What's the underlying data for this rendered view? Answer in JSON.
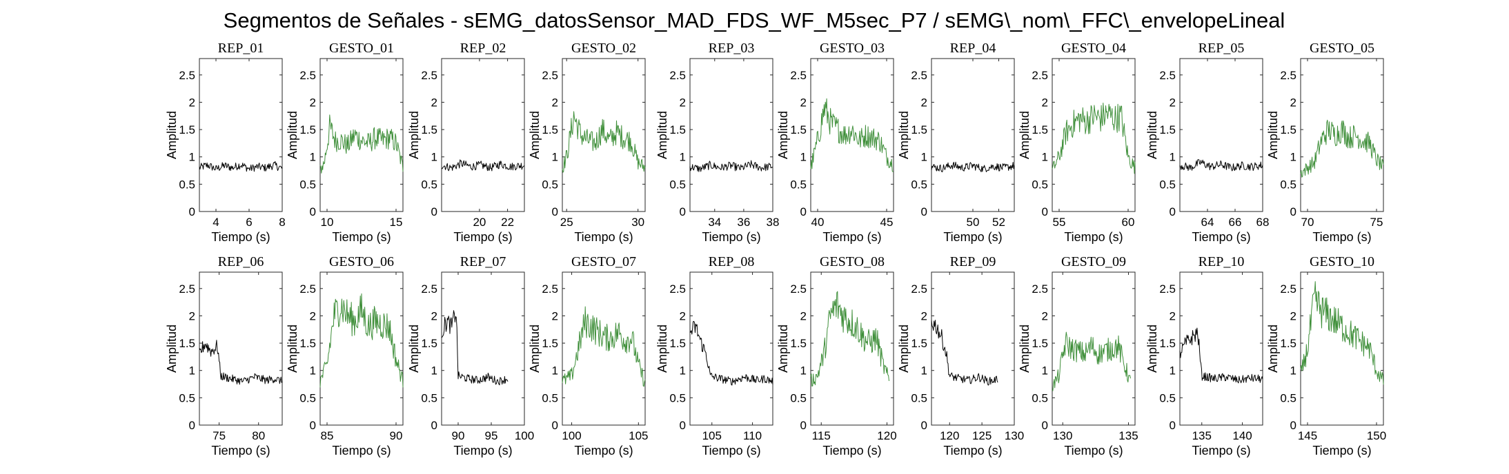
{
  "figure": {
    "title": "Segmentos de Señales - sEMG_datosSensor_MAD_FDS_WF_M5sec_P7 / sEMG\\_nom\\_FFC\\_envelopeLineal"
  },
  "colors": {
    "rep": "#000000",
    "gesto": "#3f8f3a",
    "axes": "#262626"
  },
  "chart_data": [
    {
      "type": "line",
      "title": "REP_01",
      "xlabel": "Tiempo (s)",
      "ylabel": "Amplitud",
      "xlim": [
        3,
        8
      ],
      "xticks": [
        4,
        6,
        8
      ],
      "ylim": [
        0,
        2.8
      ],
      "yticks": [
        0,
        0.5,
        1,
        1.5,
        2,
        2.5
      ],
      "series": [
        {
          "x": [
            3.0,
            3.5,
            4.0,
            4.5,
            5.0,
            5.5,
            6.0,
            6.5,
            7.0,
            7.5,
            8.0
          ],
          "y": [
            0.8,
            0.85,
            0.78,
            0.84,
            0.8,
            0.86,
            0.78,
            0.82,
            0.8,
            0.85,
            0.79
          ],
          "color": "rep"
        }
      ]
    },
    {
      "type": "line",
      "title": "GESTO_01",
      "xlabel": "Tiempo (s)",
      "ylabel": "Amplitud",
      "xlim": [
        9.5,
        15.5
      ],
      "xticks": [
        10,
        15
      ],
      "ylim": [
        0,
        2.8
      ],
      "yticks": [
        0,
        0.5,
        1,
        1.5,
        2,
        2.5
      ],
      "series": [
        {
          "x": [
            9.5,
            9.8,
            10.2,
            10.6,
            11.0,
            11.5,
            12.0,
            12.5,
            13.0,
            13.5,
            14.0,
            14.5,
            15.0,
            15.5
          ],
          "y": [
            0.75,
            0.9,
            1.55,
            1.3,
            1.3,
            1.2,
            1.4,
            1.3,
            1.25,
            1.35,
            1.3,
            1.35,
            1.25,
            0.8
          ],
          "color": "gesto"
        }
      ]
    },
    {
      "type": "line",
      "title": "REP_02",
      "xlabel": "Tiempo (s)",
      "ylabel": "Amplitud",
      "xlim": [
        17.3,
        23.2
      ],
      "xticks": [
        20,
        22
      ],
      "ylim": [
        0,
        2.8
      ],
      "yticks": [
        0,
        0.5,
        1,
        1.5,
        2,
        2.5
      ],
      "series": [
        {
          "x": [
            17.3,
            18.0,
            18.7,
            19.4,
            20.1,
            20.8,
            21.5,
            22.2,
            23.2
          ],
          "y": [
            0.85,
            0.8,
            0.88,
            0.82,
            0.85,
            0.8,
            0.87,
            0.82,
            0.85
          ],
          "color": "rep"
        }
      ]
    },
    {
      "type": "line",
      "title": "GESTO_02",
      "xlabel": "Tiempo (s)",
      "ylabel": "Amplitud",
      "xlim": [
        24.7,
        30.5
      ],
      "xticks": [
        25,
        30
      ],
      "ylim": [
        0,
        2.8
      ],
      "yticks": [
        0,
        0.5,
        1,
        1.5,
        2,
        2.5
      ],
      "series": [
        {
          "x": [
            24.7,
            25.0,
            25.5,
            26.0,
            26.5,
            27.0,
            27.5,
            28.0,
            28.5,
            29.0,
            29.5,
            30.0,
            30.5
          ],
          "y": [
            0.8,
            1.0,
            1.75,
            1.4,
            1.3,
            1.25,
            1.5,
            1.3,
            1.45,
            1.35,
            1.3,
            0.9,
            0.8
          ],
          "color": "gesto"
        }
      ]
    },
    {
      "type": "line",
      "title": "REP_03",
      "xlabel": "Tiempo (s)",
      "ylabel": "Amplitud",
      "xlim": [
        32.3,
        38
      ],
      "xticks": [
        34,
        36,
        38
      ],
      "ylim": [
        0,
        2.8
      ],
      "yticks": [
        0,
        0.5,
        1,
        1.5,
        2,
        2.5
      ],
      "series": [
        {
          "x": [
            32.3,
            33.0,
            33.7,
            34.4,
            35.1,
            35.8,
            36.5,
            37.2,
            38.0
          ],
          "y": [
            0.82,
            0.78,
            0.85,
            0.8,
            0.84,
            0.79,
            0.86,
            0.8,
            0.83
          ],
          "color": "rep"
        }
      ]
    },
    {
      "type": "line",
      "title": "GESTO_03",
      "xlabel": "Tiempo (s)",
      "ylabel": "Amplitud",
      "xlim": [
        39.5,
        45.5
      ],
      "xticks": [
        40,
        45
      ],
      "ylim": [
        0,
        2.8
      ],
      "yticks": [
        0,
        0.5,
        1,
        1.5,
        2,
        2.5
      ],
      "series": [
        {
          "x": [
            39.5,
            40.0,
            40.5,
            41.0,
            41.5,
            42.0,
            42.5,
            43.0,
            43.5,
            44.0,
            44.5,
            45.0,
            45.5
          ],
          "y": [
            0.8,
            1.3,
            1.9,
            1.6,
            1.5,
            1.4,
            1.5,
            1.3,
            1.4,
            1.35,
            1.3,
            1.0,
            0.85
          ],
          "color": "gesto"
        }
      ]
    },
    {
      "type": "line",
      "title": "REP_04",
      "xlabel": "Tiempo (s)",
      "ylabel": "Amplitud",
      "xlim": [
        46.8,
        53.2
      ],
      "xticks": [
        50,
        52
      ],
      "ylim": [
        0,
        2.8
      ],
      "yticks": [
        0,
        0.5,
        1,
        1.5,
        2,
        2.5
      ],
      "series": [
        {
          "x": [
            46.8,
            47.6,
            48.4,
            49.2,
            50.0,
            50.8,
            51.6,
            52.4,
            53.2
          ],
          "y": [
            0.82,
            0.79,
            0.85,
            0.8,
            0.84,
            0.78,
            0.83,
            0.8,
            0.84
          ],
          "color": "rep"
        }
      ]
    },
    {
      "type": "line",
      "title": "GESTO_04",
      "xlabel": "Tiempo (s)",
      "ylabel": "Amplitud",
      "xlim": [
        54.5,
        60.5
      ],
      "xticks": [
        55,
        60
      ],
      "ylim": [
        0,
        2.8
      ],
      "yticks": [
        0,
        0.5,
        1,
        1.5,
        2,
        2.5
      ],
      "series": [
        {
          "x": [
            54.5,
            55.0,
            55.5,
            56.0,
            56.5,
            57.0,
            57.5,
            58.0,
            58.5,
            59.0,
            59.5,
            60.0,
            60.5
          ],
          "y": [
            0.75,
            1.0,
            1.45,
            1.6,
            1.7,
            1.65,
            1.75,
            1.7,
            1.8,
            1.7,
            1.75,
            1.0,
            0.8
          ],
          "color": "gesto"
        }
      ]
    },
    {
      "type": "line",
      "title": "REP_05",
      "xlabel": "Tiempo (s)",
      "ylabel": "Amplitud",
      "xlim": [
        62,
        68
      ],
      "xticks": [
        64,
        66,
        68
      ],
      "ylim": [
        0,
        2.8
      ],
      "yticks": [
        0,
        0.5,
        1,
        1.5,
        2,
        2.5
      ],
      "series": [
        {
          "x": [
            62.0,
            62.75,
            63.5,
            64.25,
            65.0,
            65.75,
            66.5,
            67.25,
            68.0
          ],
          "y": [
            0.85,
            0.8,
            0.9,
            0.82,
            0.86,
            0.8,
            0.84,
            0.82,
            0.85
          ],
          "color": "rep"
        }
      ]
    },
    {
      "type": "line",
      "title": "GESTO_05",
      "xlabel": "Tiempo (s)",
      "ylabel": "Amplitud",
      "xlim": [
        69.5,
        75.5
      ],
      "xticks": [
        70,
        75
      ],
      "ylim": [
        0,
        2.8
      ],
      "yticks": [
        0,
        0.5,
        1,
        1.5,
        2,
        2.5
      ],
      "series": [
        {
          "x": [
            69.5,
            70.0,
            70.5,
            71.0,
            71.5,
            72.0,
            72.5,
            73.0,
            73.5,
            74.0,
            74.5,
            75.0,
            75.5
          ],
          "y": [
            0.7,
            0.8,
            0.9,
            1.3,
            1.5,
            1.4,
            1.5,
            1.35,
            1.4,
            1.3,
            1.25,
            0.95,
            0.8
          ],
          "color": "gesto"
        }
      ]
    },
    {
      "type": "line",
      "title": "REP_06",
      "xlabel": "Tiempo (s)",
      "ylabel": "Amplitud",
      "xlim": [
        72.5,
        83
      ],
      "xticks": [
        75,
        80
      ],
      "ylim": [
        0,
        2.8
      ],
      "yticks": [
        0,
        0.5,
        1,
        1.5,
        2,
        2.5
      ],
      "series": [
        {
          "x": [
            72.5,
            73.2,
            74.0,
            74.8,
            75.2,
            76.5,
            78.0,
            79.5,
            81.0,
            82.0,
            83.0
          ],
          "y": [
            1.3,
            1.5,
            1.35,
            1.45,
            0.9,
            0.85,
            0.8,
            0.88,
            0.82,
            0.85,
            0.8
          ],
          "color": "rep"
        }
      ]
    },
    {
      "type": "line",
      "title": "GESTO_06",
      "xlabel": "Tiempo (s)",
      "ylabel": "Amplitud",
      "xlim": [
        84.5,
        90.5
      ],
      "xticks": [
        85,
        90
      ],
      "ylim": [
        0,
        2.8
      ],
      "yticks": [
        0,
        0.5,
        1,
        1.5,
        2,
        2.5
      ],
      "series": [
        {
          "x": [
            84.5,
            85.0,
            85.5,
            86.0,
            86.5,
            87.0,
            87.5,
            88.0,
            88.5,
            89.0,
            89.5,
            90.0,
            90.5
          ],
          "y": [
            0.8,
            1.1,
            2.0,
            2.2,
            2.0,
            1.9,
            2.1,
            1.8,
            1.9,
            1.85,
            1.8,
            1.2,
            0.8
          ],
          "color": "gesto"
        }
      ]
    },
    {
      "type": "line",
      "title": "REP_07",
      "xlabel": "Tiempo (s)",
      "ylabel": "Amplitud",
      "xlim": [
        87.5,
        100
      ],
      "xticks": [
        90,
        95,
        100
      ],
      "ylim": [
        0,
        2.8
      ],
      "yticks": [
        0,
        0.5,
        1,
        1.5,
        2,
        2.5
      ],
      "series": [
        {
          "x": [
            87.5,
            88.3,
            89.0,
            89.7,
            90.0,
            91.5,
            93.0,
            94.5,
            96.0,
            97.5
          ],
          "y": [
            1.7,
            1.9,
            1.8,
            2.1,
            0.9,
            0.85,
            0.82,
            0.88,
            0.8,
            0.85
          ],
          "color": "rep"
        }
      ]
    },
    {
      "type": "line",
      "title": "GESTO_07",
      "xlabel": "Tiempo (s)",
      "ylabel": "Amplitud",
      "xlim": [
        99.3,
        105.5
      ],
      "xticks": [
        100,
        105
      ],
      "ylim": [
        0,
        2.8
      ],
      "yticks": [
        0,
        0.5,
        1,
        1.5,
        2,
        2.5
      ],
      "series": [
        {
          "x": [
            99.3,
            100.0,
            100.5,
            101.0,
            101.5,
            102.0,
            102.5,
            103.0,
            103.5,
            104.0,
            104.5,
            105.0,
            105.5
          ],
          "y": [
            0.8,
            0.9,
            1.4,
            1.9,
            1.8,
            1.7,
            1.6,
            1.6,
            1.7,
            1.55,
            1.6,
            1.1,
            0.75
          ],
          "color": "gesto"
        }
      ]
    },
    {
      "type": "line",
      "title": "REP_08",
      "xlabel": "Tiempo (s)",
      "ylabel": "Amplitud",
      "xlim": [
        102.3,
        112.5
      ],
      "xticks": [
        105,
        110
      ],
      "ylim": [
        0,
        2.8
      ],
      "yticks": [
        0,
        0.5,
        1,
        1.5,
        2,
        2.5
      ],
      "series": [
        {
          "x": [
            102.3,
            103.0,
            103.7,
            104.3,
            104.8,
            106.0,
            107.5,
            109.0,
            110.5,
            111.5,
            112.5
          ],
          "y": [
            1.7,
            1.8,
            1.5,
            1.3,
            0.9,
            0.85,
            0.8,
            0.88,
            0.82,
            0.85,
            0.8
          ],
          "color": "rep"
        }
      ]
    },
    {
      "type": "line",
      "title": "GESTO_08",
      "xlabel": "Tiempo (s)",
      "ylabel": "Amplitud",
      "xlim": [
        114.2,
        120.5
      ],
      "xticks": [
        115,
        120
      ],
      "ylim": [
        0,
        2.8
      ],
      "yticks": [
        0,
        0.5,
        1,
        1.5,
        2,
        2.5
      ],
      "series": [
        {
          "x": [
            114.2,
            114.7,
            115.2,
            115.7,
            116.2,
            116.7,
            117.2,
            117.7,
            118.2,
            118.7,
            119.2,
            119.7,
            120.2
          ],
          "y": [
            0.8,
            0.9,
            1.3,
            2.0,
            2.2,
            2.0,
            1.9,
            1.8,
            1.6,
            1.5,
            1.6,
            1.1,
            0.8
          ],
          "color": "gesto"
        }
      ]
    },
    {
      "type": "line",
      "title": "REP_09",
      "xlabel": "Tiempo (s)",
      "ylabel": "Amplitud",
      "xlim": [
        117.2,
        130
      ],
      "xticks": [
        120,
        125,
        130
      ],
      "ylim": [
        0,
        2.8
      ],
      "yticks": [
        0,
        0.5,
        1,
        1.5,
        2,
        2.5
      ],
      "series": [
        {
          "x": [
            117.2,
            118.0,
            118.8,
            119.5,
            120.0,
            121.5,
            123.0,
            124.5,
            126.0,
            127.5
          ],
          "y": [
            1.9,
            1.8,
            1.6,
            1.3,
            0.9,
            0.85,
            0.82,
            0.88,
            0.8,
            0.84
          ],
          "color": "rep"
        }
      ]
    },
    {
      "type": "line",
      "title": "GESTO_09",
      "xlabel": "Tiempo (s)",
      "ylabel": "Amplitud",
      "xlim": [
        129.2,
        135.5
      ],
      "xticks": [
        130,
        135
      ],
      "ylim": [
        0,
        2.8
      ],
      "yticks": [
        0,
        0.5,
        1,
        1.5,
        2,
        2.5
      ],
      "series": [
        {
          "x": [
            129.2,
            129.7,
            130.2,
            130.7,
            131.2,
            131.7,
            132.2,
            132.7,
            133.2,
            133.7,
            134.2,
            134.7,
            135.2
          ],
          "y": [
            0.7,
            0.9,
            1.5,
            1.4,
            1.35,
            1.3,
            1.45,
            1.3,
            1.35,
            1.4,
            1.45,
            1.1,
            0.75
          ],
          "color": "gesto"
        }
      ]
    },
    {
      "type": "line",
      "title": "REP_10",
      "xlabel": "Tiempo (s)",
      "ylabel": "Amplitud",
      "xlim": [
        132.3,
        142.5
      ],
      "xticks": [
        135,
        140
      ],
      "ylim": [
        0,
        2.8
      ],
      "yticks": [
        0,
        0.5,
        1,
        1.5,
        2,
        2.5
      ],
      "series": [
        {
          "x": [
            132.3,
            133.0,
            133.8,
            134.5,
            135.0,
            136.5,
            138.0,
            139.5,
            141.0,
            142.5
          ],
          "y": [
            1.3,
            1.5,
            1.6,
            1.7,
            0.9,
            0.85,
            0.88,
            0.82,
            0.86,
            0.84
          ],
          "color": "rep"
        }
      ]
    },
    {
      "type": "line",
      "title": "GESTO_10",
      "xlabel": "Tiempo (s)",
      "ylabel": "Amplitud",
      "xlim": [
        144.5,
        150.5
      ],
      "xticks": [
        145,
        150
      ],
      "ylim": [
        0,
        2.8
      ],
      "yticks": [
        0,
        0.5,
        1,
        1.5,
        2,
        2.5
      ],
      "series": [
        {
          "x": [
            144.5,
            145.0,
            145.5,
            146.0,
            146.5,
            147.0,
            147.5,
            148.0,
            148.5,
            149.0,
            149.5,
            150.0,
            150.5
          ],
          "y": [
            0.9,
            1.4,
            2.3,
            2.1,
            2.0,
            1.9,
            1.8,
            1.7,
            1.6,
            1.5,
            1.4,
            1.0,
            0.8
          ],
          "color": "gesto"
        }
      ]
    }
  ]
}
